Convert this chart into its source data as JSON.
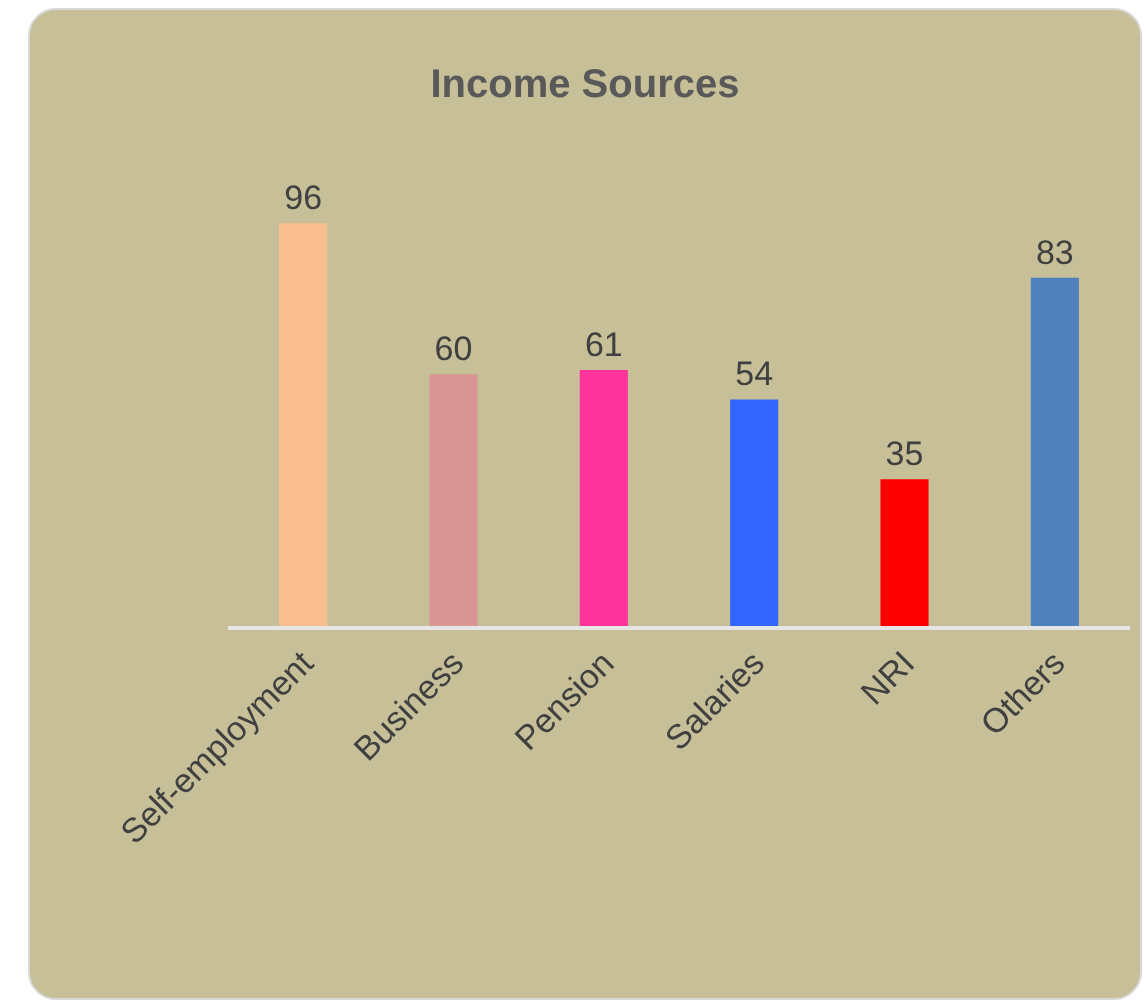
{
  "chart_data": {
    "type": "bar",
    "title": "Income Sources",
    "categories": [
      "Self-employment",
      "Business",
      "Pension",
      "Salaries",
      "NRI",
      "Others"
    ],
    "values": [
      96,
      60,
      61,
      54,
      35,
      83
    ],
    "colors": [
      "#f9bf8f",
      "#d99694",
      "#ff3399",
      "#3366ff",
      "#ff0000",
      "#4f81bd"
    ],
    "data_labels": true,
    "grid": false,
    "legend": false
  }
}
